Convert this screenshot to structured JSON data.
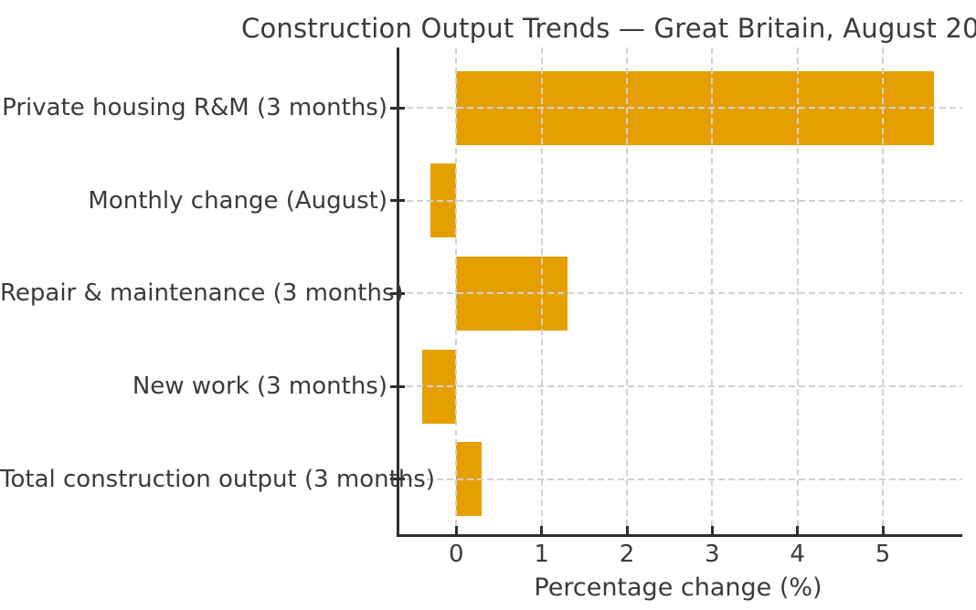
{
  "chart_data": {
    "type": "bar",
    "orientation": "horizontal",
    "title": "Construction Output Trends — Great Britain, August 20",
    "xlabel": "Percentage change (%)",
    "categories": [
      "Private housing R&M (3 months)",
      "Monthly change (August)",
      "Repair & maintenance (3 months)",
      "New work (3 months)",
      "Total construction output (3 months)"
    ],
    "values": [
      5.6,
      -0.3,
      1.3,
      -0.4,
      0.3
    ],
    "xticks": [
      0,
      1,
      2,
      3,
      4,
      5
    ],
    "xlim": [
      -0.7,
      5.9
    ],
    "grid": true,
    "grid_style": "dashed",
    "grid_over_bars": true,
    "bar_color": "#E69F00",
    "background_color": "#ffffff",
    "text_color": "#3a3a3a",
    "axis_color": "#2e2e2e",
    "grid_color": "#d2d2d2",
    "legend": "none"
  }
}
